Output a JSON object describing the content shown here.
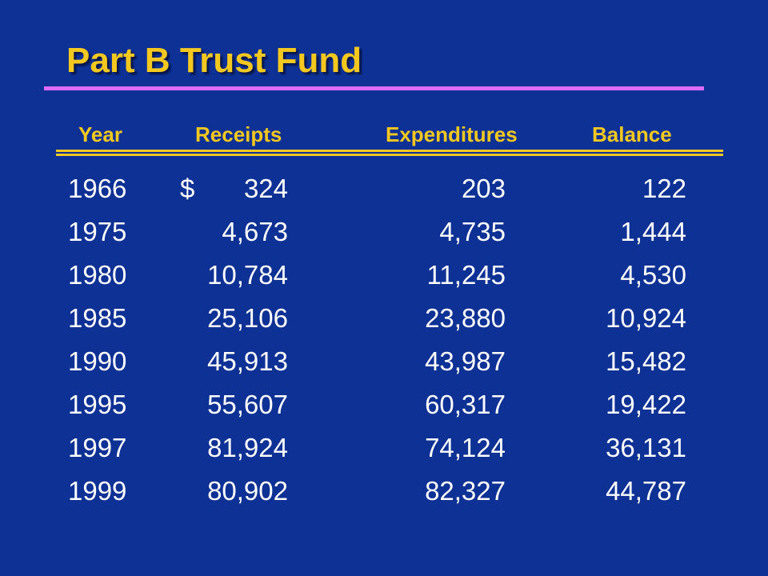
{
  "title": "Part B Trust Fund",
  "colors": {
    "background": "#0d3195",
    "title": "#f5c81f",
    "title_rule": "#de6bff",
    "header": "#f5c81f",
    "body_text": "#ffffff"
  },
  "columns": {
    "year": "Year",
    "receipts": "Receipts",
    "expenditures": "Expenditures",
    "balance": "Balance"
  },
  "currency_symbol": "$",
  "rows": [
    {
      "year": "1966",
      "receipts": "324",
      "expenditures": "203",
      "balance": "122"
    },
    {
      "year": "1975",
      "receipts": "4,673",
      "expenditures": "4,735",
      "balance": "1,444"
    },
    {
      "year": "1980",
      "receipts": "10,784",
      "expenditures": "11,245",
      "balance": "4,530"
    },
    {
      "year": "1985",
      "receipts": "25,106",
      "expenditures": "23,880",
      "balance": "10,924"
    },
    {
      "year": "1990",
      "receipts": "45,913",
      "expenditures": "43,987",
      "balance": "15,482"
    },
    {
      "year": "1995",
      "receipts": "55,607",
      "expenditures": "60,317",
      "balance": "19,422"
    },
    {
      "year": "1997",
      "receipts": "81,924",
      "expenditures": "74,124",
      "balance": "36,131"
    },
    {
      "year": "1999",
      "receipts": "80,902",
      "expenditures": "82,327",
      "balance": "44,787"
    }
  ]
}
